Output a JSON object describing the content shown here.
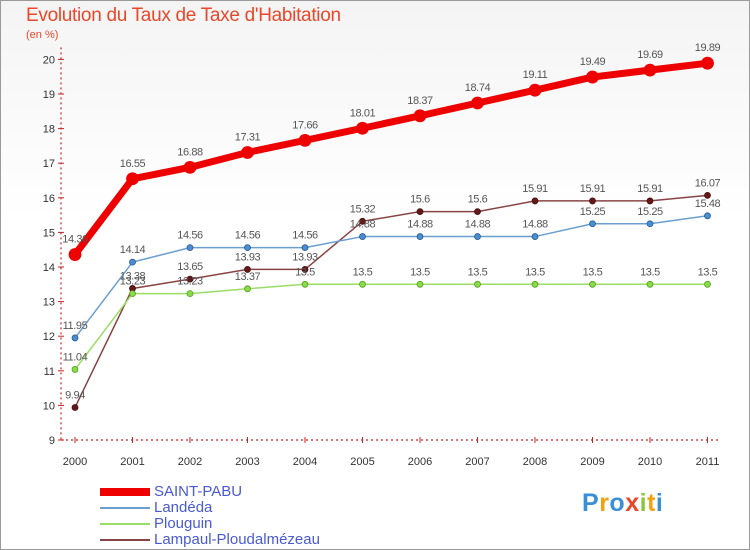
{
  "chart_data": {
    "type": "line",
    "title": "Evolution du Taux de Taxe d'Habitation",
    "unit_label": "(en %)",
    "x": [
      "2000",
      "2001",
      "2002",
      "2003",
      "2004",
      "2005",
      "2006",
      "2007",
      "2008",
      "2009",
      "2010",
      "2011"
    ],
    "y_ticks": [
      "9",
      "10",
      "11",
      "12",
      "13",
      "14",
      "15",
      "16",
      "17",
      "18",
      "19",
      "20"
    ],
    "ylim": [
      9,
      20
    ],
    "grid": false,
    "legend_position": "bottom-left",
    "series": [
      {
        "name": "SAINT-PABU",
        "color": "#ee0000",
        "values": [
          14.36,
          16.55,
          16.88,
          17.31,
          17.66,
          18.01,
          18.37,
          18.74,
          19.11,
          19.49,
          19.69,
          19.89
        ],
        "labels": [
          "14.36",
          "16.55",
          "16.88",
          "17.31",
          "17.66",
          "18.01",
          "18.37",
          "18.74",
          "19.11",
          "19.49",
          "19.69",
          "19.89"
        ]
      },
      {
        "name": "Landéda",
        "color": "#6b9fd0",
        "values": [
          11.95,
          14.14,
          14.56,
          14.56,
          14.56,
          14.88,
          14.88,
          14.88,
          14.88,
          15.25,
          15.25,
          15.48
        ],
        "labels": [
          "11.95",
          "14.14",
          "14.56",
          "14.56",
          "14.56",
          "14.88",
          "14.88",
          "14.88",
          "14.88",
          "15.25",
          "15.25",
          "15.48"
        ]
      },
      {
        "name": "Plouguin",
        "color": "#99dd66",
        "values": [
          11.04,
          13.23,
          13.23,
          13.37,
          13.5,
          13.5,
          13.5,
          13.5,
          13.5,
          13.5,
          13.5,
          13.5
        ],
        "labels": [
          "11.04",
          "13.23",
          "13.23",
          "13.37",
          "13.5",
          "13.5",
          "13.5",
          "13.5",
          "13.5",
          "13.5",
          "13.5",
          "13.5"
        ]
      },
      {
        "name": "Lampaul-Ploudalmézeau",
        "color": "#884444",
        "values": [
          9.94,
          13.38,
          13.65,
          13.93,
          13.93,
          15.32,
          15.6,
          15.6,
          15.91,
          15.91,
          15.91,
          16.07
        ],
        "labels": [
          "9.94",
          "13.38",
          "13.65",
          "13.93",
          "13.93",
          "15.32",
          "15.6",
          "15.6",
          "15.91",
          "15.91",
          "15.91",
          "16.07"
        ]
      }
    ]
  },
  "logo": {
    "text": "Proxiti",
    "letters": [
      "P",
      "r",
      "o",
      "x",
      "i",
      "t",
      "i"
    ],
    "colors": [
      "#3a8fd6",
      "#f2a20f",
      "#3a8fd6",
      "#e8482a",
      "#8cc63e",
      "#f2a20f",
      "#3a8fd6"
    ]
  }
}
